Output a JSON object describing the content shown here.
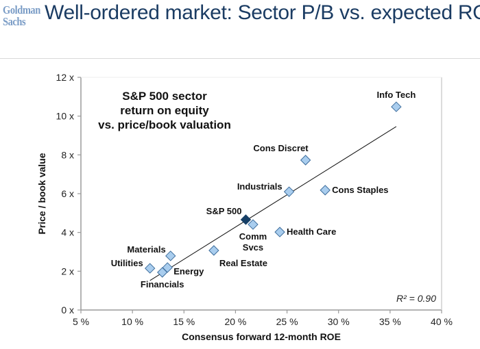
{
  "header": {
    "logo_line1": "Goldman",
    "logo_line2": "Sachs",
    "title": "Well-ordered market: Sector P/B vs. expected ROE"
  },
  "chart_data": {
    "type": "scatter",
    "title_lines": [
      "S&P 500 sector",
      "return on equity",
      "vs. price/book valuation"
    ],
    "xlabel": "Consensus forward 12-month ROE",
    "ylabel": "Price / book value",
    "xlim": [
      5,
      40
    ],
    "ylim": [
      0,
      12
    ],
    "xticks": [
      5,
      10,
      15,
      20,
      25,
      30,
      35,
      40
    ],
    "xtick_labels": [
      "5 %",
      "10 %",
      "15 %",
      "20 %",
      "25 %",
      "30 %",
      "35 %",
      "40 %"
    ],
    "yticks": [
      0,
      2,
      4,
      6,
      8,
      10,
      12
    ],
    "ytick_labels": [
      "0 x",
      "2 x",
      "4 x",
      "6 x",
      "8 x",
      "10 x",
      "12 x"
    ],
    "grid": false,
    "annotation": "R² = 0.90",
    "colors": {
      "sector": "#a9cdee",
      "sector_edge": "#3d6d9c",
      "index": "#163f66",
      "trend": "#111111"
    },
    "trendline": {
      "x": [
        11.7,
        35.6
      ],
      "y": [
        1.52,
        9.46
      ]
    },
    "points": [
      {
        "name": "Info Tech",
        "label_lines": [
          "Info Tech"
        ],
        "x": 35.6,
        "y": 10.48,
        "highlight": false,
        "label_pos": "above"
      },
      {
        "name": "Cons Discret",
        "label_lines": [
          "Cons Discret"
        ],
        "x": 26.8,
        "y": 7.73,
        "highlight": false,
        "label_pos": "above-left"
      },
      {
        "name": "Industrials",
        "label_lines": [
          "Industrials"
        ],
        "x": 25.2,
        "y": 6.1,
        "highlight": false,
        "label_pos": "left"
      },
      {
        "name": "Cons Staples",
        "label_lines": [
          "Cons Staples"
        ],
        "x": 28.7,
        "y": 6.18,
        "highlight": false,
        "label_pos": "right"
      },
      {
        "name": "S&P 500",
        "label_lines": [
          "S&P 500"
        ],
        "x": 21.0,
        "y": 4.66,
        "highlight": true,
        "label_pos": "above-left"
      },
      {
        "name": "Comm Svcs",
        "label_lines": [
          "Comm",
          "Svcs"
        ],
        "x": 21.7,
        "y": 4.41,
        "highlight": false,
        "label_pos": "below"
      },
      {
        "name": "Health Care",
        "label_lines": [
          "Health Care"
        ],
        "x": 24.3,
        "y": 4.02,
        "highlight": false,
        "label_pos": "right"
      },
      {
        "name": "Real Estate",
        "label_lines": [
          "Real Estate"
        ],
        "x": 17.9,
        "y": 3.07,
        "highlight": false,
        "label_pos": "below-right"
      },
      {
        "name": "Materials",
        "label_lines": [
          "Materials"
        ],
        "x": 13.7,
        "y": 2.79,
        "highlight": false,
        "label_pos": "above-left"
      },
      {
        "name": "Energy",
        "label_lines": [
          "Energy"
        ],
        "x": 13.4,
        "y": 2.19,
        "highlight": false,
        "label_pos": "right-low"
      },
      {
        "name": "Financials",
        "label_lines": [
          "Financials"
        ],
        "x": 12.9,
        "y": 1.94,
        "highlight": false,
        "label_pos": "below"
      },
      {
        "name": "Utilities",
        "label_lines": [
          "Utilities"
        ],
        "x": 11.7,
        "y": 2.15,
        "highlight": false,
        "label_pos": "left"
      }
    ]
  }
}
